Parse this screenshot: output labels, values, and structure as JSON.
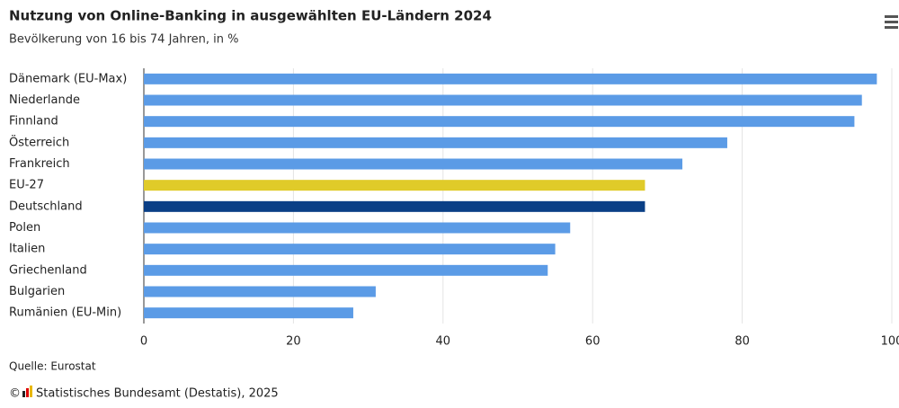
{
  "chart_data": {
    "type": "hbar",
    "title": "Nutzung von Online-Banking in ausgewählten EU-Ländern 2024",
    "subtitle": "Bevölkerung von 16 bis 74 Jahren, in %",
    "categories": [
      "Dänemark (EU-Max)",
      "Niederlande",
      "Finnland",
      "Österreich",
      "Frankreich",
      "EU-27",
      "Deutschland",
      "Polen",
      "Italien",
      "Griechenland",
      "Bulgarien",
      "Rumänien (EU-Min)"
    ],
    "values": [
      98,
      96,
      95,
      78,
      72,
      67,
      67,
      57,
      55,
      54,
      31,
      28
    ],
    "colors": [
      "#5b9be6",
      "#5b9be6",
      "#5b9be6",
      "#5b9be6",
      "#5b9be6",
      "#e0cb29",
      "#0a3f86",
      "#5b9be6",
      "#5b9be6",
      "#5b9be6",
      "#5b9be6",
      "#5b9be6"
    ],
    "xlim": [
      0,
      100
    ],
    "xticks": [
      0,
      20,
      40,
      60,
      80,
      100
    ],
    "grid": true,
    "source": "Quelle: Eurostat",
    "copyright_symbol": "©",
    "copyright": "Statistisches Bundesamt (Destatis), 2025"
  }
}
